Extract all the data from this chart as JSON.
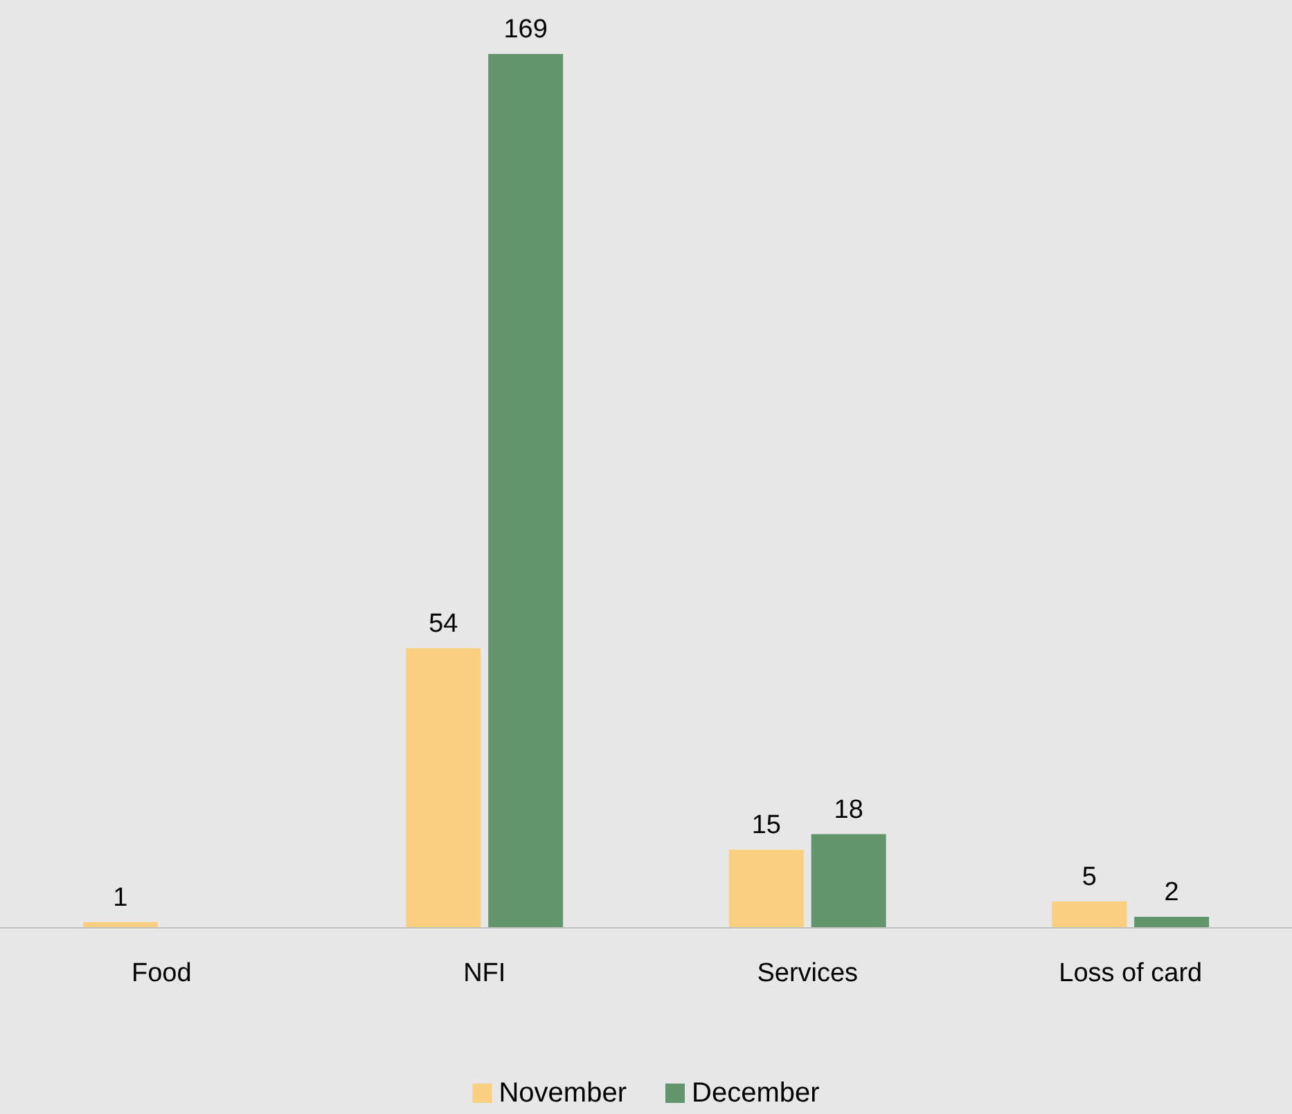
{
  "chart_data": {
    "type": "bar",
    "categories": [
      "Food",
      "NFI",
      "Services",
      "Loss of card"
    ],
    "series": [
      {
        "name": "November",
        "color": "#fbcf81",
        "values": [
          1,
          54,
          15,
          5
        ]
      },
      {
        "name": "December",
        "color": "#62956b",
        "values": [
          null,
          169,
          18,
          2
        ]
      }
    ],
    "data_labels": true,
    "legend": "bottom",
    "grid": false
  }
}
